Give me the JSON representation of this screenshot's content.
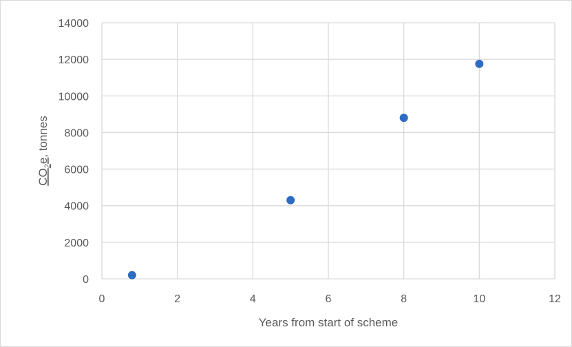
{
  "chart_data": {
    "type": "scatter",
    "title": "",
    "xlabel": "Years from start of scheme",
    "ylabel": {
      "main": "CO",
      "subscript": "2",
      "after_subscript": "e",
      "rest": ", tonnes"
    },
    "xlim": [
      0,
      12
    ],
    "ylim": [
      0,
      14000
    ],
    "x_ticks": [
      0,
      2,
      4,
      6,
      8,
      10,
      12
    ],
    "y_ticks": [
      0,
      2000,
      4000,
      6000,
      8000,
      10000,
      12000,
      14000
    ],
    "grid": true,
    "legend": "none",
    "marker_color": "#2e6cc2",
    "series": [
      {
        "x": [
          0.8,
          5,
          8,
          10
        ],
        "y": [
          200,
          4300,
          8800,
          11750
        ]
      }
    ]
  }
}
